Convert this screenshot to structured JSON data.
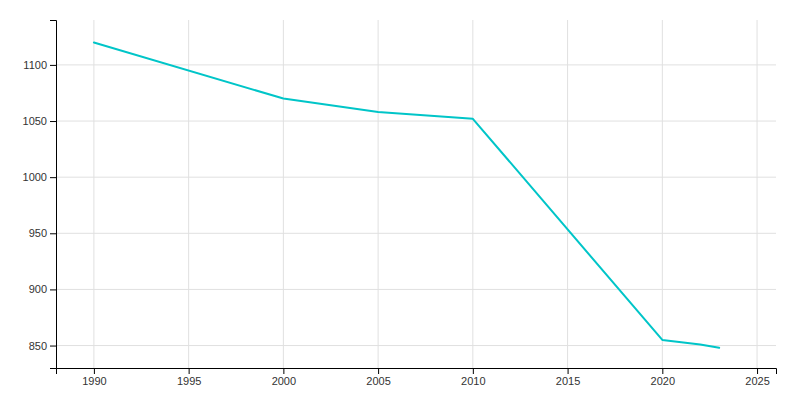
{
  "chart_data": {
    "type": "line",
    "x": [
      1990,
      2000,
      2005,
      2010,
      2020,
      2021,
      2022,
      2023
    ],
    "values": [
      1120,
      1070,
      1058,
      1052,
      855,
      853,
      851,
      848
    ],
    "color": "#00C5C8",
    "xlim": [
      1988,
      2026
    ],
    "ylim": [
      830,
      1140
    ],
    "xticks": [
      1990,
      1995,
      2000,
      2005,
      2010,
      2015,
      2020,
      2025
    ],
    "yticks": [
      850,
      900,
      950,
      1000,
      1050,
      1100
    ],
    "grid": true
  }
}
